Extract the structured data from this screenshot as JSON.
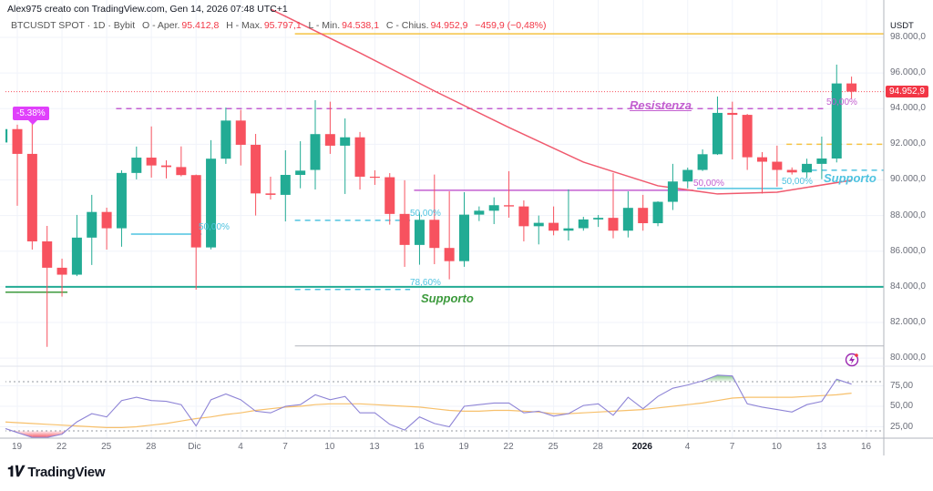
{
  "header": {
    "attribution": "Alex975 creato con TradingView.com, Gen 14, 2026 07:48 UTC+1",
    "symbol": "BTCUSDT SPOT · 1D · Bybit",
    "open_label": "O - Aper.",
    "open_value": "95.412,8",
    "high_label": "H - Max.",
    "high_value": "95.797,1",
    "low_label": "L - Min.",
    "low_value": "94.538,1",
    "close_label": "C - Chius.",
    "close_value": "94.952,9",
    "change": "−459,9 (−0,48%)"
  },
  "price_axis": {
    "currency": "USDT",
    "labels": [
      "98.000,0",
      "96.000,0",
      "94.000,0",
      "92.000,0",
      "90.000,0",
      "88.000,0",
      "86.000,0",
      "84.000,0",
      "82.000,0",
      "80.000,0"
    ],
    "last_price_label": "94.952,9"
  },
  "rsi_axis": {
    "labels": [
      "75,00",
      "50,00",
      "25,00"
    ]
  },
  "time_axis": {
    "labels": [
      "19",
      "22",
      "25",
      "28",
      "Dic",
      "4",
      "7",
      "10",
      "13",
      "16",
      "19",
      "22",
      "25",
      "28",
      "2026",
      "4",
      "7",
      "10",
      "13",
      "16"
    ]
  },
  "annotations": {
    "pct_tag": "-5.38%",
    "resistance": "Resistenza",
    "support_main": "Supporto",
    "support_small": "Supporto",
    "fib1": "50,00%",
    "fib2": "50,00%",
    "fib3": "78,60%",
    "fib4": "50,00%",
    "fib5": "50,00%",
    "fib6": "50,00%"
  },
  "footer": {
    "logo": "TradingView"
  },
  "colors": {
    "up": "#22ab94",
    "down": "#f7525f",
    "ma": "#f05a6e",
    "rsi": "#8e84d6",
    "rsi_ma": "#f7c06b",
    "resistance": "#c35fd0",
    "support": "#22ab94",
    "support_text": "#3c9a3c",
    "fib": "#4fc3e0",
    "level_yellow": "#f5c342"
  },
  "chart_data": {
    "type": "candlestick",
    "symbol": "BTCUSDT",
    "interval": "1D",
    "ylim": [
      79500,
      99500
    ],
    "columns": [
      "date",
      "open",
      "high",
      "low",
      "close"
    ],
    "candles": [
      [
        "2025-11-18",
        92100,
        92900,
        92000,
        92850
      ],
      [
        "2025-11-19",
        92850,
        93100,
        88550,
        91460
      ],
      [
        "2025-11-20",
        91460,
        93200,
        86090,
        86550
      ],
      [
        "2025-11-21",
        86550,
        87420,
        80630,
        85070
      ],
      [
        "2025-11-22",
        85070,
        85580,
        83450,
        84680
      ],
      [
        "2025-11-23",
        84680,
        88035,
        84600,
        86760
      ],
      [
        "2025-11-24",
        86760,
        89160,
        85225,
        88200
      ],
      [
        "2025-11-25",
        88200,
        88440,
        86090,
        87285
      ],
      [
        "2025-11-26",
        87285,
        90540,
        86250,
        90390
      ],
      [
        "2025-11-27",
        90390,
        91870,
        90030,
        91250
      ],
      [
        "2025-11-28",
        91250,
        93000,
        90130,
        90810
      ],
      [
        "2025-11-29",
        90810,
        91100,
        90080,
        90720
      ],
      [
        "2025-11-30",
        90720,
        91880,
        90200,
        90270
      ],
      [
        "2025-12-01",
        90270,
        90300,
        83840,
        86210
      ],
      [
        "2025-12-02",
        86210,
        92230,
        86100,
        91190
      ],
      [
        "2025-12-03",
        91190,
        94060,
        90900,
        93330
      ],
      [
        "2025-12-04",
        93330,
        93930,
        90810,
        91970
      ],
      [
        "2025-12-05",
        91970,
        92580,
        88000,
        89240
      ],
      [
        "2025-12-06",
        89240,
        90180,
        88900,
        89160
      ],
      [
        "2025-12-07",
        89160,
        91660,
        87670,
        90280
      ],
      [
        "2025-12-08",
        90280,
        92170,
        89530,
        90520
      ],
      [
        "2025-12-09",
        90560,
        94470,
        89460,
        92570
      ],
      [
        "2025-12-10",
        92570,
        94390,
        91460,
        91920
      ],
      [
        "2025-12-11",
        91920,
        93450,
        89210,
        92390
      ],
      [
        "2025-12-12",
        92390,
        92690,
        89460,
        90180
      ],
      [
        "2025-12-13",
        90180,
        90540,
        89720,
        90150
      ],
      [
        "2025-12-14",
        90150,
        90380,
        87490,
        88090
      ],
      [
        "2025-12-15",
        88090,
        89980,
        85120,
        86350
      ],
      [
        "2025-12-16",
        86350,
        88190,
        85240,
        87760
      ],
      [
        "2025-12-17",
        87760,
        90300,
        85270,
        86180
      ],
      [
        "2025-12-18",
        86180,
        89360,
        84420,
        85440
      ],
      [
        "2025-12-19",
        85440,
        89310,
        85120,
        88050
      ],
      [
        "2025-12-20",
        88050,
        88510,
        87690,
        88270
      ],
      [
        "2025-12-21",
        88270,
        89020,
        87520,
        88580
      ],
      [
        "2025-12-22",
        88580,
        90490,
        87880,
        88510
      ],
      [
        "2025-12-23",
        88510,
        88850,
        86550,
        87400
      ],
      [
        "2025-12-24",
        87400,
        88000,
        86380,
        87590
      ],
      [
        "2025-12-25",
        87590,
        88510,
        86890,
        87150
      ],
      [
        "2025-12-26",
        87150,
        89470,
        86600,
        87280
      ],
      [
        "2025-12-27",
        87290,
        87930,
        87150,
        87780
      ],
      [
        "2025-12-28",
        87780,
        88030,
        87360,
        87870
      ],
      [
        "2025-12-29",
        87870,
        90390,
        86720,
        87150
      ],
      [
        "2025-12-30",
        87150,
        89360,
        86770,
        88430
      ],
      [
        "2025-12-31",
        88430,
        89160,
        87150,
        87570
      ],
      [
        "2026-01-01",
        87570,
        88800,
        87400,
        88770
      ],
      [
        "2026-01-02",
        88770,
        90900,
        88310,
        89910
      ],
      [
        "2026-01-03",
        89910,
        90690,
        89530,
        90560
      ],
      [
        "2026-01-04",
        90560,
        91710,
        90500,
        91440
      ],
      [
        "2026-01-05",
        91440,
        94680,
        91400,
        93760
      ],
      [
        "2026-01-06",
        93760,
        94390,
        91150,
        93650
      ],
      [
        "2026-01-07",
        93650,
        93700,
        90560,
        91270
      ],
      [
        "2026-01-08",
        91270,
        91560,
        89230,
        91020
      ],
      [
        "2026-01-09",
        91020,
        91920,
        89620,
        90560
      ],
      [
        "2026-01-10",
        90560,
        90700,
        90300,
        90420
      ],
      [
        "2026-01-11",
        90420,
        91190,
        90130,
        90900
      ],
      [
        "2026-01-12",
        90900,
        92430,
        90040,
        91200
      ],
      [
        "2026-01-13",
        91200,
        96470,
        90980,
        95412.8
      ],
      [
        "2026-01-14",
        95412.8,
        95797.1,
        94538.1,
        94952.9
      ]
    ],
    "moving_average": [
      [
        "2025-12-06",
        99580
      ],
      [
        "2025-12-07",
        99180
      ],
      [
        "2025-12-12",
        97130
      ],
      [
        "2025-12-17",
        94990
      ],
      [
        "2025-12-22",
        92940
      ],
      [
        "2025-12-27",
        91000
      ],
      [
        "2026-01-01",
        89670
      ],
      [
        "2026-01-05",
        89210
      ],
      [
        "2026-01-09",
        89310
      ],
      [
        "2026-01-14",
        89980
      ]
    ],
    "last_price": 94952.9,
    "levels": [
      {
        "id": "yellow-top",
        "price": 98200,
        "from": "2025-12-08",
        "to": null,
        "style": "solid",
        "color": "#f5c342"
      },
      {
        "id": "resistance",
        "price": 94000,
        "from": "2025-11-26",
        "to": "2026-01-12",
        "style": "dashed",
        "color": "#c35fd0"
      },
      {
        "id": "support",
        "price": 84000,
        "from": "2025-11-18",
        "to": null,
        "style": "solid",
        "color": "#22ab94"
      },
      {
        "id": "support-dark",
        "price": 83700,
        "from": "2025-11-18",
        "to": "2025-11-22",
        "style": "solid",
        "color": "#3c9a3c"
      },
      {
        "id": "fib-a",
        "price": 86960,
        "from": "2025-11-27",
        "to": "2025-12-01",
        "style": "solid",
        "color": "#4fc3e0"
      },
      {
        "id": "fib-b",
        "price": 87730,
        "from": "2025-12-08",
        "to": "2025-12-15",
        "style": "dashed",
        "color": "#4fc3e0"
      },
      {
        "id": "fib-c",
        "price": 83850,
        "from": "2025-12-08",
        "to": "2025-12-15",
        "style": "dashed",
        "color": "#4fc3e0"
      },
      {
        "id": "purple-range",
        "price": 89420,
        "from": "2025-12-16",
        "to": "2026-01-03",
        "style": "solid",
        "color": "#c35fd0"
      },
      {
        "id": "fib-d",
        "price": 89520,
        "from": "2026-01-04",
        "to": "2026-01-09",
        "style": "solid",
        "color": "#4fc3e0"
      },
      {
        "id": "yellow-dash",
        "price": 92000,
        "from": "2026-01-10",
        "to": null,
        "style": "dashed",
        "color": "#f5c342"
      },
      {
        "id": "cyan-dash",
        "price": 90540,
        "from": "2026-01-11",
        "to": null,
        "style": "dashed",
        "color": "#4fc3e0"
      },
      {
        "id": "gray",
        "price": 80680,
        "from": "2025-12-08",
        "to": null,
        "style": "solid",
        "color": "#b2b5be"
      }
    ],
    "rsi": {
      "ylim": [
        0,
        100
      ],
      "bands": [
        20,
        80
      ],
      "values": [
        24,
        18,
        12,
        12,
        16,
        31,
        41,
        37,
        57,
        61,
        57,
        56,
        52,
        26,
        58,
        65,
        58,
        44,
        42,
        50,
        52,
        64,
        58,
        62,
        42,
        42,
        28,
        21,
        37,
        29,
        25,
        50,
        52,
        54,
        54,
        42,
        44,
        38,
        41,
        51,
        53,
        39,
        61,
        47,
        62,
        72,
        76,
        81,
        88,
        87,
        53,
        49,
        46,
        43,
        52,
        56,
        83,
        77
      ],
      "ma": [
        31,
        30,
        29,
        28,
        27,
        26,
        25,
        24,
        24,
        25,
        27,
        29,
        32,
        35,
        37,
        40,
        42,
        45,
        47,
        49,
        50,
        52,
        53,
        53,
        53,
        52,
        51,
        50,
        49,
        47,
        45,
        44,
        44,
        45,
        45,
        44,
        43,
        41,
        41,
        42,
        43,
        44,
        45,
        46,
        48,
        50,
        52,
        54,
        57,
        60,
        61,
        61,
        61,
        61,
        62,
        63,
        64,
        66
      ]
    }
  }
}
